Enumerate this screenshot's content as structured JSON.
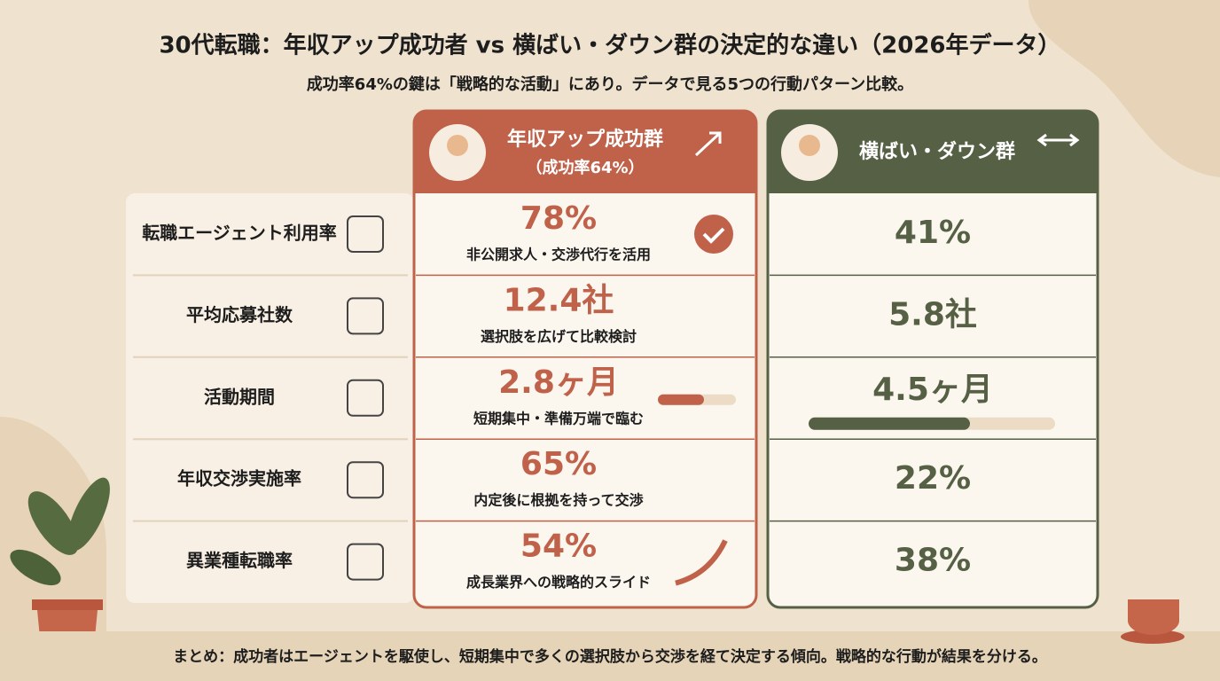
{
  "header": {
    "title": "30代転職：年収アップ成功者 vs 横ばい・ダウン群の決定的な違い（2026年データ）",
    "subtitle": "成功率64%の鍵は「戦略的な活動」にあり。データで見る5つの行動パターン比較。"
  },
  "groups": {
    "success": {
      "title": "年収アップ成功群",
      "subtitle": "（成功率64%）"
    },
    "other": {
      "title": "横ばい・ダウン群"
    }
  },
  "rows": [
    {
      "label": "転職エージェント利用率",
      "success": "78%",
      "note": "非公開求人・交渉代行を活用",
      "other": "41%"
    },
    {
      "label": "平均応募社数",
      "success": "12.4社",
      "note": "選択肢を広げて比較検討",
      "other": "5.8社"
    },
    {
      "label": "活動期間",
      "success": "2.8ヶ月",
      "note": "短期集中・準備万端で臨む",
      "other": "4.5ヶ月"
    },
    {
      "label": "年収交渉実施率",
      "success": "65%",
      "note": "内定後に根拠を持って交渉",
      "other": "22%"
    },
    {
      "label": "異業種転職率",
      "success": "54%",
      "note": "成長業界への戦略的スライド",
      "other": "38%"
    }
  ],
  "footer": "まとめ：成功者はエージェントを駆使し、短期集中で多くの選択肢から交渉を経て決定する傾向。戦略的な行動が結果を分ける。"
}
